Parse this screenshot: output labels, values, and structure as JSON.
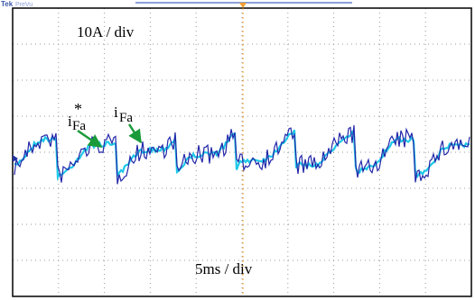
{
  "header": {
    "brand": "Tek",
    "mode": "PreVu"
  },
  "labels": {
    "vertical_scale": "10A / div",
    "horizontal_scale": "5ms / div",
    "reference": {
      "base": "i",
      "sup": "*",
      "sub": "Fa"
    },
    "measured": {
      "base": "i",
      "sub": "Fa"
    }
  }
}
